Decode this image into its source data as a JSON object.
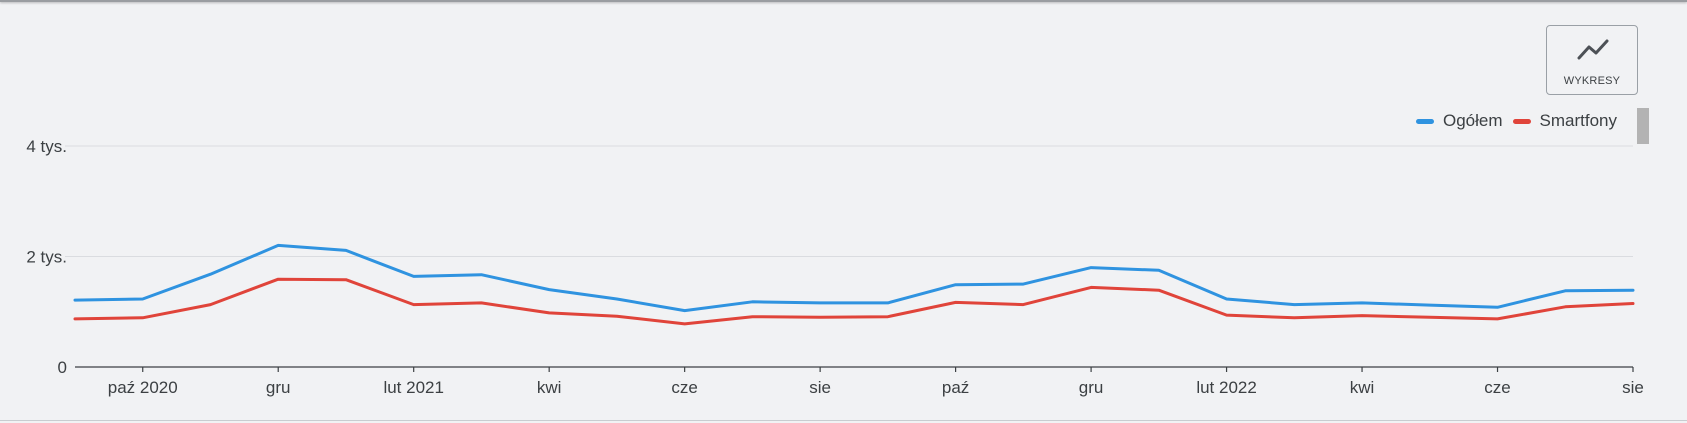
{
  "toolbar": {
    "chart_button_label": "WYKRESY",
    "chart_button_icon": "line-chart-icon"
  },
  "chart_data": {
    "type": "line",
    "title": "",
    "xlabel": "",
    "ylabel": "",
    "ylim": [
      0,
      4000
    ],
    "grid": true,
    "legend_position": "top-right",
    "y_ticks": [
      {
        "value": 0,
        "label": "0"
      },
      {
        "value": 2000,
        "label": "2 tys."
      },
      {
        "value": 4000,
        "label": "4 tys."
      }
    ],
    "x_tick_labels": [
      {
        "index": 1,
        "label": "paź 2020"
      },
      {
        "index": 3,
        "label": "gru"
      },
      {
        "index": 5,
        "label": "lut 2021"
      },
      {
        "index": 7,
        "label": "kwi"
      },
      {
        "index": 9,
        "label": "cze"
      },
      {
        "index": 11,
        "label": "sie"
      },
      {
        "index": 13,
        "label": "paź"
      },
      {
        "index": 15,
        "label": "gru"
      },
      {
        "index": 17,
        "label": "lut 2022"
      },
      {
        "index": 19,
        "label": "kwi"
      },
      {
        "index": 21,
        "label": "cze"
      },
      {
        "index": 23,
        "label": "sie"
      }
    ],
    "series": [
      {
        "name": "Ogółem",
        "color": "#2f93e0",
        "values": [
          1210,
          1230,
          1680,
          2200,
          2110,
          1640,
          1670,
          1400,
          1230,
          1020,
          1180,
          1160,
          1160,
          1490,
          1500,
          1800,
          1750,
          1230,
          1130,
          1160,
          1120,
          1080,
          1380,
          1390
        ]
      },
      {
        "name": "Smartfony",
        "color": "#e0443a",
        "values": [
          870,
          890,
          1130,
          1590,
          1580,
          1130,
          1160,
          980,
          920,
          780,
          910,
          900,
          910,
          1170,
          1130,
          1440,
          1390,
          940,
          890,
          930,
          900,
          870,
          1090,
          1150
        ]
      }
    ]
  }
}
